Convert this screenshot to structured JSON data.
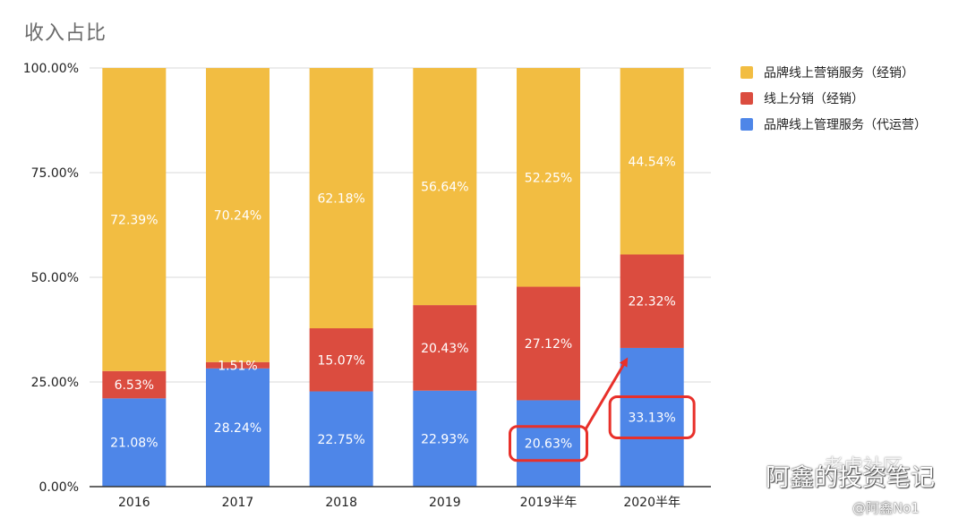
{
  "chart_data": {
    "type": "bar",
    "stacked": true,
    "title": "收入占比",
    "categories": [
      "2016",
      "2017",
      "2018",
      "2019",
      "2019半年",
      "2020半年"
    ],
    "series": [
      {
        "name": "品牌线上管理服务（代运营）",
        "color": "#4e86e8",
        "values": [
          21.08,
          28.24,
          22.75,
          22.93,
          20.63,
          33.13
        ]
      },
      {
        "name": "线上分销（经销）",
        "color": "#db4c3f",
        "values": [
          6.53,
          1.51,
          15.07,
          20.43,
          27.12,
          22.32
        ]
      },
      {
        "name": "品牌线上营销服务（经销）",
        "color": "#f2bd42",
        "values": [
          72.39,
          70.24,
          62.18,
          56.64,
          52.25,
          44.54
        ]
      }
    ],
    "data_labels": [
      [
        "21.08%",
        "28.24%",
        "22.75%",
        "22.93%",
        "20.63%",
        "33.13%"
      ],
      [
        "6.53%",
        "1.51%",
        "15.07%",
        "20.43%",
        "27.12%",
        "22.32%"
      ],
      [
        "72.39%",
        "70.24%",
        "62.18%",
        "56.64%",
        "52.25%",
        "44.54%"
      ]
    ],
    "legend_order": [
      2,
      1,
      0
    ],
    "ylim": [
      0,
      100
    ],
    "yticks": [
      0,
      25,
      50,
      75,
      100
    ],
    "ytick_labels": [
      "0.00%",
      "25.00%",
      "50.00%",
      "75.00%",
      "100.00%"
    ],
    "grid": true,
    "legend_position": "right",
    "highlight": {
      "boxed": [
        "20.63%",
        "33.13%"
      ],
      "arrow": "from 2019半年 to 2020半年",
      "color": "#e8302a"
    }
  },
  "watermark": {
    "main": "阿鑫的投资笔记",
    "top": "老虎社区",
    "sub": "@阿鑫No1"
  }
}
